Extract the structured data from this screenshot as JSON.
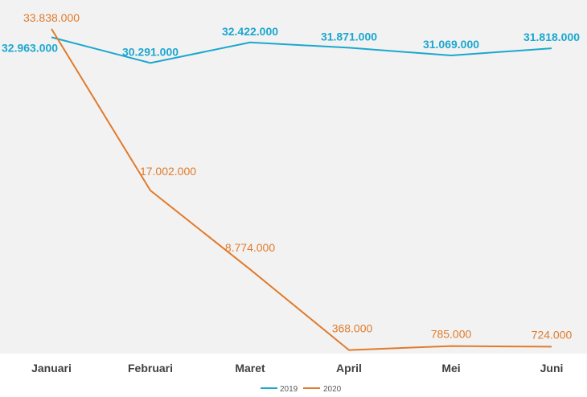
{
  "chart_data": {
    "type": "line",
    "categories": [
      "Januari",
      "Februari",
      "Maret",
      "April",
      "Mei",
      "Juni"
    ],
    "series": [
      {
        "name": "2019",
        "color": "#1ba7cf",
        "values": [
          32963000,
          30291000,
          32422000,
          31871000,
          31069000,
          31818000
        ],
        "labels": [
          "32.963.000",
          "30.291.000",
          "32.422.000",
          "31.871.000",
          "31.069.000",
          "31.818.000"
        ]
      },
      {
        "name": "2020",
        "color": "#e07b2c",
        "values": [
          33838000,
          17002000,
          8774000,
          368000,
          785000,
          724000
        ],
        "labels": [
          "33.838.000",
          "17.002.000",
          "8.774.000",
          "368.000",
          "785.000",
          "724.000"
        ]
      }
    ],
    "ylim": [
      0,
      34000000
    ],
    "grid": false,
    "legend": "bottom-center",
    "plot_background": "#f2f2f2"
  }
}
